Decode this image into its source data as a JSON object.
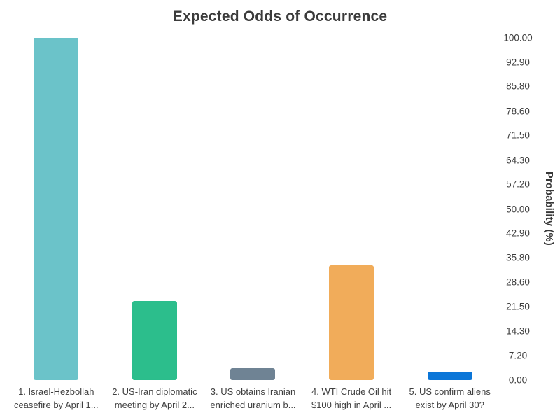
{
  "page": {
    "background": "#ffffff"
  },
  "chart_data": {
    "type": "bar",
    "title": "Expected Odds of Occurrence",
    "xlabel": "",
    "ylabel": "Probability (%)",
    "yaxis_side": "right",
    "ylim": [
      0,
      100
    ],
    "grid": false,
    "legend": "none",
    "yticks": [
      "100.00",
      "92.90",
      "85.80",
      "78.60",
      "71.50",
      "64.30",
      "57.20",
      "50.00",
      "42.90",
      "35.80",
      "28.60",
      "21.50",
      "14.30",
      "7.20",
      "0.00"
    ],
    "categories": [
      "1. Israel-Hezbollah ceasefire by April 1...",
      "2. US-Iran diplomatic meeting by April 2...",
      "3. US obtains Iranian enriched uranium b...",
      "4. WTI Crude Oil hit $100 high in April ...",
      "5. US confirm aliens exist by April 30?"
    ],
    "category_lines": [
      [
        "1. Israel-Hezbollah",
        "ceasefire by April 1..."
      ],
      [
        "2. US-Iran diplomatic",
        "meeting by April 2..."
      ],
      [
        "3. US obtains Iranian",
        "enriched uranium b..."
      ],
      [
        "4. WTI Crude Oil hit",
        "$100 high in April ..."
      ],
      [
        "5. US confirm aliens",
        "exist by April 30?"
      ]
    ],
    "values": [
      100.0,
      23.1,
      3.5,
      33.6,
      2.4
    ],
    "colors": [
      "#6BC3C9",
      "#2CBE8C",
      "#6F8394",
      "#F1AC5A",
      "#0B76D8"
    ]
  }
}
